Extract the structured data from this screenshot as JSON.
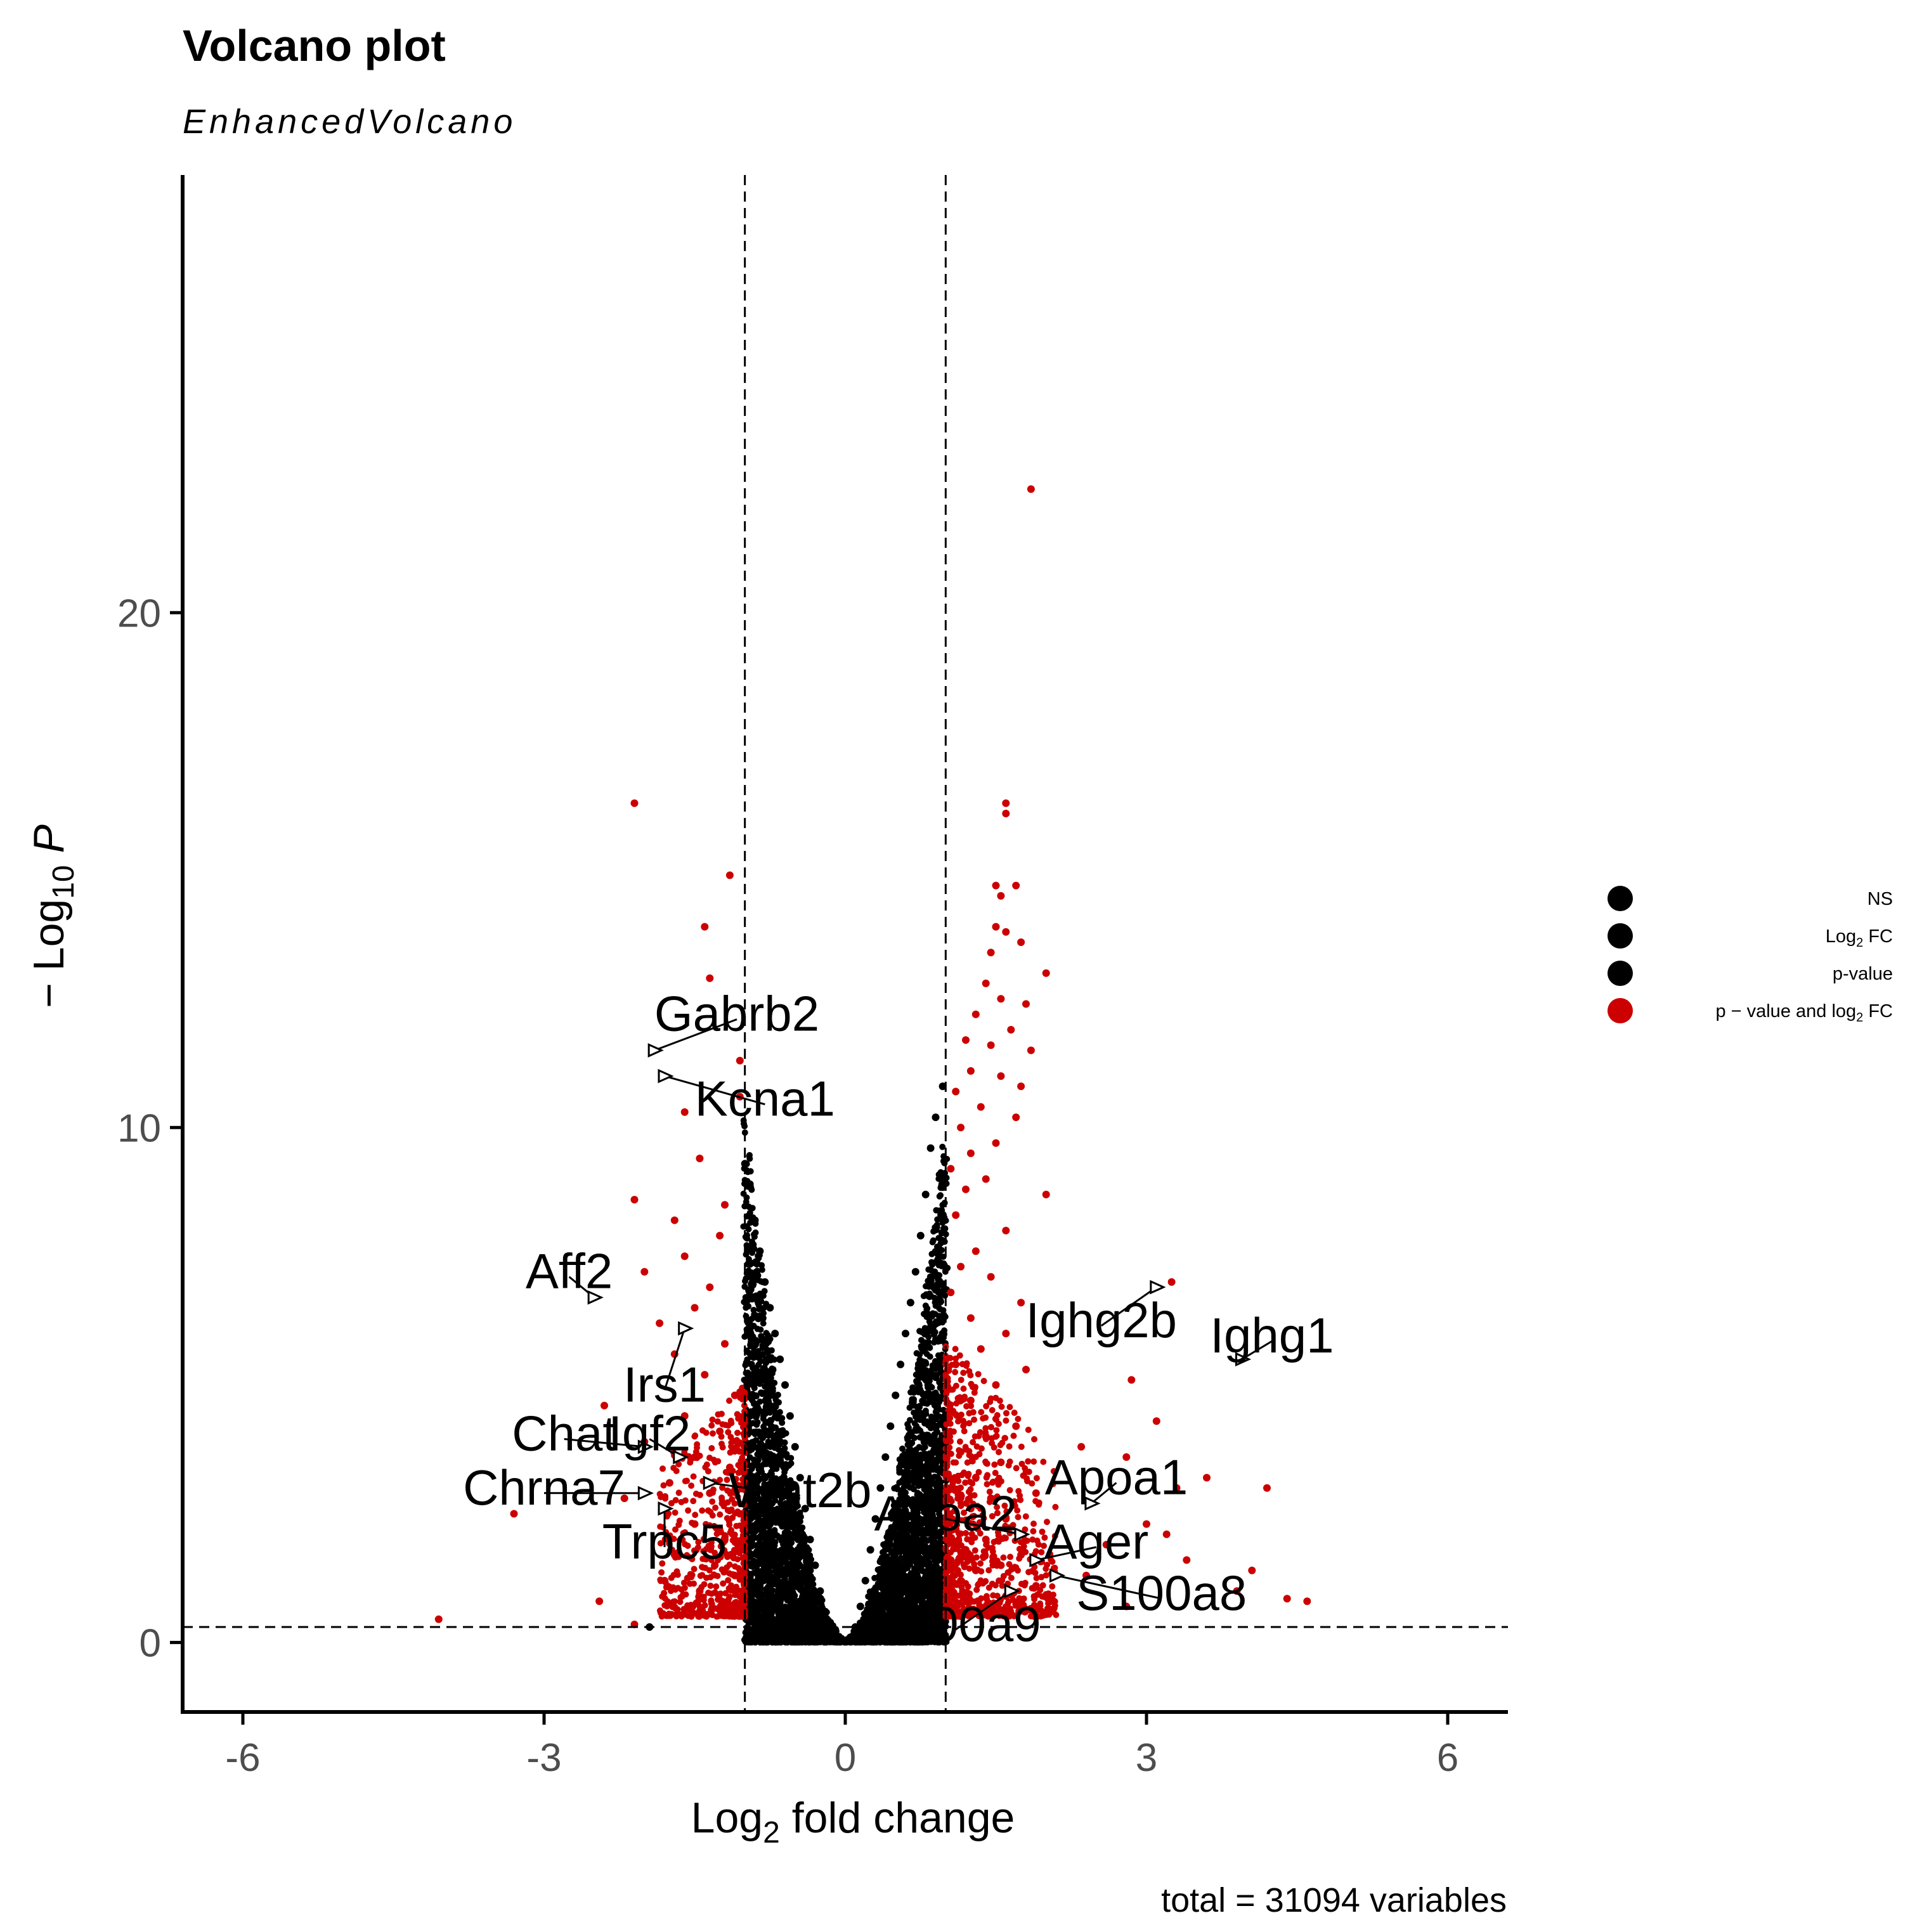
{
  "chart_data": {
    "type": "scatter",
    "title": "Volcano plot",
    "subtitle": "EnhancedVolcano",
    "caption": "total = 31094 variables",
    "xlabel": {
      "main": "Log",
      "sub": "2",
      "rest": " fold change"
    },
    "ylabel": {
      "main": "− Log",
      "sub": "10",
      "rest": " P"
    },
    "xlim": [
      -6.6,
      6.6
    ],
    "ylim": [
      -1.35,
      28.5
    ],
    "x_ticks": [
      -6,
      -3,
      0,
      3,
      6
    ],
    "x_tick_labels": [
      "-6",
      "-3",
      "0",
      "3",
      "6"
    ],
    "y_ticks": [
      0,
      10,
      20
    ],
    "y_tick_labels": [
      "0",
      "10",
      "20"
    ],
    "grid": false,
    "cutoffs": {
      "log2fc": [
        -1,
        1
      ],
      "neg_log10_p": 0.3
    },
    "colors": {
      "ns": "#000000",
      "sig": "#cc0000",
      "line": "#000000"
    },
    "legend": {
      "position": "right",
      "items": [
        {
          "main": "NS",
          "sub": "",
          "rest": "",
          "color": "#000000"
        },
        {
          "main": "Log",
          "sub": "2",
          "rest": " FC",
          "color": "#000000"
        },
        {
          "main": "p-value",
          "sub": "",
          "rest": "",
          "color": "#000000"
        },
        {
          "main": "p − value and log",
          "sub": "2",
          "rest": " FC",
          "color": "#cc0000"
        }
      ]
    },
    "series": [
      {
        "group": "p-value and log2 FC",
        "points": [
          [
            1.85,
            22.4
          ],
          [
            -2.1,
            16.3
          ],
          [
            1.6,
            16.3
          ],
          [
            1.6,
            16.1
          ],
          [
            -1.15,
            14.9
          ],
          [
            1.5,
            14.7
          ],
          [
            1.7,
            14.7
          ],
          [
            1.55,
            14.5
          ],
          [
            -1.4,
            13.9
          ],
          [
            1.5,
            13.9
          ],
          [
            1.6,
            13.8
          ],
          [
            1.75,
            13.6
          ],
          [
            1.45,
            13.4
          ],
          [
            2.0,
            13.0
          ],
          [
            -1.35,
            12.9
          ],
          [
            1.4,
            12.8
          ],
          [
            1.55,
            12.5
          ],
          [
            1.8,
            12.4
          ],
          [
            1.3,
            12.2
          ],
          [
            1.65,
            11.9
          ],
          [
            1.2,
            11.7
          ],
          [
            1.45,
            11.6
          ],
          [
            1.85,
            11.5
          ],
          [
            -1.05,
            11.3
          ],
          [
            1.25,
            11.1
          ],
          [
            1.55,
            11.0
          ],
          [
            1.75,
            10.8
          ],
          [
            1.1,
            10.7
          ],
          [
            -1.05,
            10.6
          ],
          [
            1.35,
            10.4
          ],
          [
            -1.6,
            10.3
          ],
          [
            1.7,
            10.2
          ],
          [
            1.15,
            10.0
          ],
          [
            1.5,
            9.7
          ],
          [
            1.25,
            9.5
          ],
          [
            -1.45,
            9.4
          ],
          [
            1.05,
            9.2
          ],
          [
            1.4,
            9.0
          ],
          [
            -2.1,
            8.6
          ],
          [
            1.2,
            8.8
          ],
          [
            2.0,
            8.7
          ],
          [
            -1.2,
            8.5
          ],
          [
            1.1,
            8.3
          ],
          [
            -1.7,
            8.2
          ],
          [
            1.6,
            8.0
          ],
          [
            -1.25,
            7.9
          ],
          [
            1.3,
            7.6
          ],
          [
            -1.6,
            7.5
          ],
          [
            1.15,
            7.3
          ],
          [
            -2.0,
            7.2
          ],
          [
            1.45,
            7.1
          ],
          [
            -1.35,
            6.9
          ],
          [
            1.05,
            6.8
          ],
          [
            1.75,
            6.6
          ],
          [
            -1.5,
            6.5
          ],
          [
            1.25,
            6.3
          ],
          [
            -1.85,
            6.2
          ],
          [
            1.6,
            6.0
          ],
          [
            -1.2,
            5.8
          ],
          [
            1.35,
            5.7
          ],
          [
            -1.7,
            5.6
          ],
          [
            1.1,
            5.4
          ],
          [
            1.8,
            5.3
          ],
          [
            -1.4,
            5.2
          ],
          [
            2.85,
            5.1
          ],
          [
            1.5,
            5.0
          ],
          [
            -1.1,
            4.8
          ],
          [
            1.25,
            4.7
          ],
          [
            -2.4,
            4.6
          ],
          [
            1.05,
            4.5
          ],
          [
            -1.6,
            4.4
          ],
          [
            3.1,
            4.3
          ],
          [
            1.7,
            4.2
          ],
          [
            -1.25,
            4.1
          ],
          [
            1.4,
            4.0
          ],
          [
            -2.0,
            3.9
          ],
          [
            2.35,
            3.8
          ],
          [
            1.15,
            3.7
          ],
          [
            -1.5,
            3.6
          ],
          [
            2.8,
            3.6
          ],
          [
            1.55,
            3.5
          ],
          [
            -1.15,
            3.4
          ],
          [
            3.6,
            3.2
          ],
          [
            1.3,
            3.2
          ],
          [
            -1.75,
            3.1
          ],
          [
            4.2,
            3.0
          ],
          [
            1.05,
            3.0
          ],
          [
            -1.35,
            2.9
          ],
          [
            3.3,
            3.0
          ],
          [
            1.9,
            2.9
          ],
          [
            -2.2,
            2.8
          ],
          [
            1.45,
            2.8
          ],
          [
            -3.3,
            2.5
          ],
          [
            1.25,
            2.6
          ],
          [
            -1.05,
            2.5
          ],
          [
            3.0,
            2.3
          ],
          [
            1.6,
            2.4
          ],
          [
            -1.5,
            2.3
          ],
          [
            1.1,
            2.2
          ],
          [
            3.2,
            2.1
          ],
          [
            -1.2,
            2.0
          ],
          [
            1.4,
            2.0
          ],
          [
            2.6,
            1.9
          ],
          [
            1.2,
            1.8
          ],
          [
            -1.7,
            1.7
          ],
          [
            1.75,
            1.7
          ],
          [
            3.4,
            1.6
          ],
          [
            1.05,
            1.6
          ],
          [
            -1.3,
            1.5
          ],
          [
            1.55,
            1.5
          ],
          [
            4.05,
            1.4
          ],
          [
            1.3,
            1.4
          ],
          [
            -1.1,
            1.3
          ],
          [
            2.4,
            1.3
          ],
          [
            1.15,
            1.2
          ],
          [
            -1.8,
            1.2
          ],
          [
            1.9,
            1.1
          ],
          [
            -1.45,
            1.0
          ],
          [
            1.05,
            1.0
          ],
          [
            3.9,
            1.0
          ],
          [
            4.4,
            0.85
          ],
          [
            4.6,
            0.8
          ],
          [
            1.6,
            0.9
          ],
          [
            -2.45,
            0.8
          ],
          [
            1.25,
            0.8
          ],
          [
            -1.2,
            0.7
          ],
          [
            2.8,
            0.7
          ],
          [
            1.4,
            0.65
          ],
          [
            -1.6,
            0.6
          ],
          [
            1.1,
            0.55
          ],
          [
            -4.05,
            0.45
          ],
          [
            -2.1,
            0.35
          ],
          [
            3.1,
            6.9
          ],
          [
            3.25,
            7.0
          ],
          [
            -2.5,
            6.7
          ]
        ]
      },
      {
        "group": "NS",
        "points": [
          [
            0.97,
            10.8
          ],
          [
            -1.0,
            9.3
          ],
          [
            0.9,
            10.2
          ],
          [
            -0.95,
            8.9
          ],
          [
            0.85,
            9.6
          ],
          [
            -0.9,
            8.2
          ],
          [
            0.8,
            8.7
          ],
          [
            -0.85,
            7.6
          ],
          [
            0.75,
            7.9
          ],
          [
            -0.8,
            7.0
          ],
          [
            0.7,
            7.2
          ],
          [
            -0.75,
            6.5
          ],
          [
            0.65,
            6.6
          ],
          [
            -0.7,
            6.0
          ],
          [
            0.6,
            6.0
          ],
          [
            -0.65,
            5.5
          ],
          [
            0.55,
            5.4
          ],
          [
            -0.6,
            5.0
          ],
          [
            0.5,
            4.8
          ],
          [
            -0.55,
            4.4
          ],
          [
            0.45,
            4.2
          ],
          [
            -0.5,
            3.8
          ],
          [
            0.4,
            3.6
          ],
          [
            -0.45,
            3.2
          ],
          [
            0.35,
            3.0
          ],
          [
            -0.4,
            2.6
          ],
          [
            0.3,
            2.4
          ],
          [
            -0.35,
            2.0
          ],
          [
            0.25,
            1.8
          ],
          [
            -0.3,
            1.5
          ],
          [
            0.2,
            1.2
          ],
          [
            -0.25,
            1.0
          ],
          [
            0.15,
            0.7
          ],
          [
            -0.2,
            0.6
          ],
          [
            0.1,
            0.3
          ],
          [
            -0.1,
            0.25
          ],
          [
            0.05,
            0.1
          ],
          [
            -1.95,
            0.3
          ]
        ]
      }
    ],
    "labels": [
      {
        "text": "Gabrb2",
        "point": [
          -1.9,
          11.5
        ],
        "at": [
          -1.08,
          12.2
        ]
      },
      {
        "text": "Kcna1",
        "point": [
          -1.8,
          11.0
        ],
        "at": [
          -0.8,
          10.55
        ]
      },
      {
        "text": "Aff2",
        "point": [
          -2.5,
          6.7
        ],
        "at": [
          -2.75,
          7.2
        ]
      },
      {
        "text": "Irs1",
        "point": [
          -1.6,
          6.1
        ],
        "at": [
          -1.8,
          5.0
        ]
      },
      {
        "text": "Chat",
        "point": [
          -2.0,
          3.8
        ],
        "at": [
          -2.8,
          4.05
        ]
      },
      {
        "text": "Igf2",
        "point": [
          -1.65,
          3.6
        ],
        "at": [
          -1.95,
          4.05
        ]
      },
      {
        "text": "Chrna7",
        "point": [
          -2.0,
          2.9
        ],
        "at": [
          -3.0,
          3.0
        ]
      },
      {
        "text": "Wnt2b",
        "point": [
          -1.35,
          3.1
        ],
        "at": [
          -0.45,
          2.95
        ]
      },
      {
        "text": "Trpc5",
        "point": [
          -1.8,
          2.6
        ],
        "at": [
          -1.8,
          1.95
        ]
      },
      {
        "text": "Ighg2b",
        "point": [
          3.1,
          6.9
        ],
        "at": [
          2.55,
          6.25
        ]
      },
      {
        "text": "Ighg1",
        "point": [
          3.95,
          5.5
        ],
        "at": [
          4.25,
          5.95
        ]
      },
      {
        "text": "Apoa1",
        "point": [
          2.45,
          2.7
        ],
        "at": [
          2.7,
          3.2
        ]
      },
      {
        "text": "Apoa2",
        "point": [
          1.75,
          2.1
        ],
        "at": [
          1.0,
          2.5
        ]
      },
      {
        "text": "Ager",
        "point": [
          1.9,
          1.6
        ],
        "at": [
          2.5,
          1.95
        ]
      },
      {
        "text": "S100a8",
        "point": [
          2.1,
          1.3
        ],
        "at": [
          3.15,
          0.95
        ]
      },
      {
        "text": "S100a9",
        "point": [
          1.65,
          1.0
        ],
        "at": [
          1.1,
          0.35
        ]
      }
    ]
  }
}
